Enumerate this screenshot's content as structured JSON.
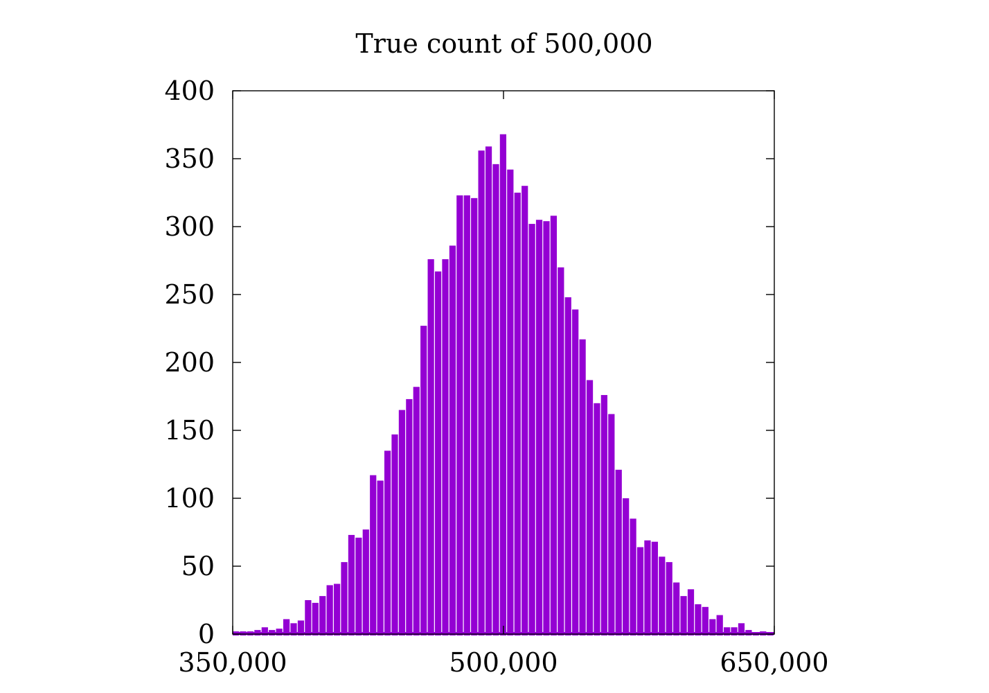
{
  "chart_data": {
    "type": "bar",
    "title": "True count of 500,000",
    "xlabel": "",
    "ylabel": "",
    "xlim": [
      350000,
      650000
    ],
    "ylim": [
      0,
      400
    ],
    "x_ticks": [
      350000,
      500000,
      650000
    ],
    "x_tick_labels": [
      "350,000",
      "500,000",
      "650,000"
    ],
    "y_ticks": [
      0,
      50,
      100,
      150,
      200,
      250,
      300,
      350,
      400
    ],
    "y_tick_labels": [
      "0",
      "50",
      "100",
      "150",
      "200",
      "250",
      "300",
      "350",
      "400"
    ],
    "grid": false,
    "bin_start": 350000,
    "bin_width": 4000,
    "bar_color": "#9400D3",
    "values": [
      2,
      2,
      2,
      3,
      5,
      3,
      4,
      11,
      8,
      10,
      25,
      23,
      28,
      36,
      37,
      53,
      73,
      71,
      77,
      117,
      113,
      135,
      147,
      165,
      173,
      182,
      227,
      276,
      267,
      276,
      286,
      323,
      323,
      321,
      356,
      359,
      346,
      368,
      342,
      325,
      330,
      302,
      305,
      304,
      308,
      270,
      248,
      239,
      217,
      187,
      170,
      176,
      162,
      121,
      100,
      85,
      64,
      69,
      68,
      57,
      53,
      38,
      28,
      33,
      22,
      20,
      11,
      14,
      5,
      5,
      8,
      3,
      1,
      2,
      1
    ]
  }
}
